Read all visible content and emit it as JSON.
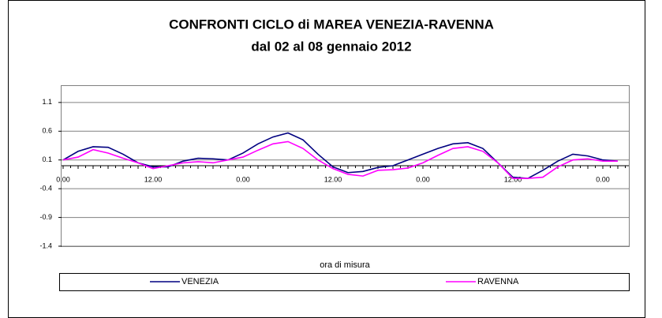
{
  "chart_data": {
    "type": "line",
    "title": [
      "CONFRONTI CICLO di MAREA VENEZIA-RAVENNA",
      "dal 02 al 08 gennaio 2012"
    ],
    "x_label": "ora di misura",
    "categories": [
      "0.00",
      null,
      null,
      null,
      null,
      null,
      "12.00",
      null,
      null,
      null,
      null,
      null,
      "0.00",
      null,
      null,
      null,
      null,
      null,
      "12.00",
      null,
      null,
      null,
      null,
      null,
      "0.00",
      null,
      null,
      null,
      null,
      null,
      "12.00",
      null,
      null,
      null,
      null,
      null,
      "0.00",
      null
    ],
    "series": [
      {
        "name": "VENEZIA",
        "color": "#000080",
        "values": [
          0.1,
          0.25,
          0.33,
          0.32,
          0.2,
          0.05,
          -0.02,
          -0.02,
          0.08,
          0.13,
          0.12,
          0.1,
          0.22,
          0.38,
          0.5,
          0.57,
          0.45,
          0.2,
          -0.02,
          -0.12,
          -0.1,
          -0.03,
          0.0,
          0.1,
          0.2,
          0.3,
          0.38,
          0.4,
          0.3,
          0.05,
          -0.2,
          -0.22,
          -0.08,
          0.08,
          0.2,
          0.17,
          0.1,
          0.08
        ]
      },
      {
        "name": "RAVENNA",
        "color": "#ff00ff",
        "values": [
          0.1,
          0.15,
          0.28,
          0.22,
          0.13,
          0.05,
          -0.05,
          0.0,
          0.05,
          0.07,
          0.05,
          0.1,
          0.15,
          0.27,
          0.38,
          0.42,
          0.3,
          0.1,
          -0.05,
          -0.15,
          -0.18,
          -0.08,
          -0.07,
          -0.04,
          0.05,
          0.18,
          0.3,
          0.33,
          0.25,
          0.05,
          -0.22,
          -0.22,
          -0.2,
          -0.02,
          0.1,
          0.12,
          0.08,
          0.08
        ]
      }
    ],
    "ylim": [
      -1.4,
      1.4
    ],
    "yticks": [
      -1.4,
      -0.9,
      -0.4,
      0.1,
      0.6,
      1.1
    ],
    "grid": true,
    "legend": "bottom"
  }
}
